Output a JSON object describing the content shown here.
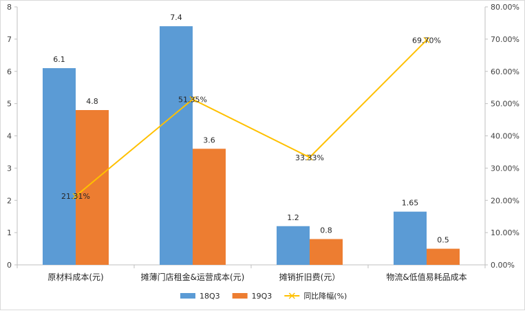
{
  "chart_data": {
    "type": "bar",
    "categories": [
      "原材料成本(元)",
      "摊薄门店租金&运营成本(元)",
      "摊销折旧费(元）",
      "物流&低值易耗品成本"
    ],
    "series": [
      {
        "name": "18Q3",
        "type": "bar",
        "axis": "left",
        "color": "#5B9BD5",
        "values": [
          6.1,
          7.4,
          1.2,
          1.65
        ],
        "labels": [
          "6.1",
          "7.4",
          "1.2",
          "1.65"
        ]
      },
      {
        "name": "19Q3",
        "type": "bar",
        "axis": "left",
        "color": "#ED7D31",
        "values": [
          4.8,
          3.6,
          0.8,
          0.5
        ],
        "labels": [
          "4.8",
          "3.6",
          "0.8",
          "0.5"
        ]
      },
      {
        "name": "同比降幅(%)",
        "type": "line",
        "axis": "right",
        "color": "#FFC000",
        "values": [
          21.31,
          51.35,
          33.33,
          69.7
        ],
        "labels": [
          "21.31%",
          "51.35%",
          "33.33%",
          "69.70%"
        ]
      }
    ],
    "y_left": {
      "min": 0,
      "max": 8,
      "step": 1,
      "ticks": [
        "0",
        "1",
        "2",
        "3",
        "4",
        "5",
        "6",
        "7",
        "8"
      ]
    },
    "y_right": {
      "min": 0,
      "max": 80,
      "step": 10,
      "ticks": [
        "0.00%",
        "10.00%",
        "20.00%",
        "30.00%",
        "40.00%",
        "50.00%",
        "60.00%",
        "70.00%",
        "80.00%"
      ]
    },
    "grid": false,
    "legend_position": "bottom"
  }
}
